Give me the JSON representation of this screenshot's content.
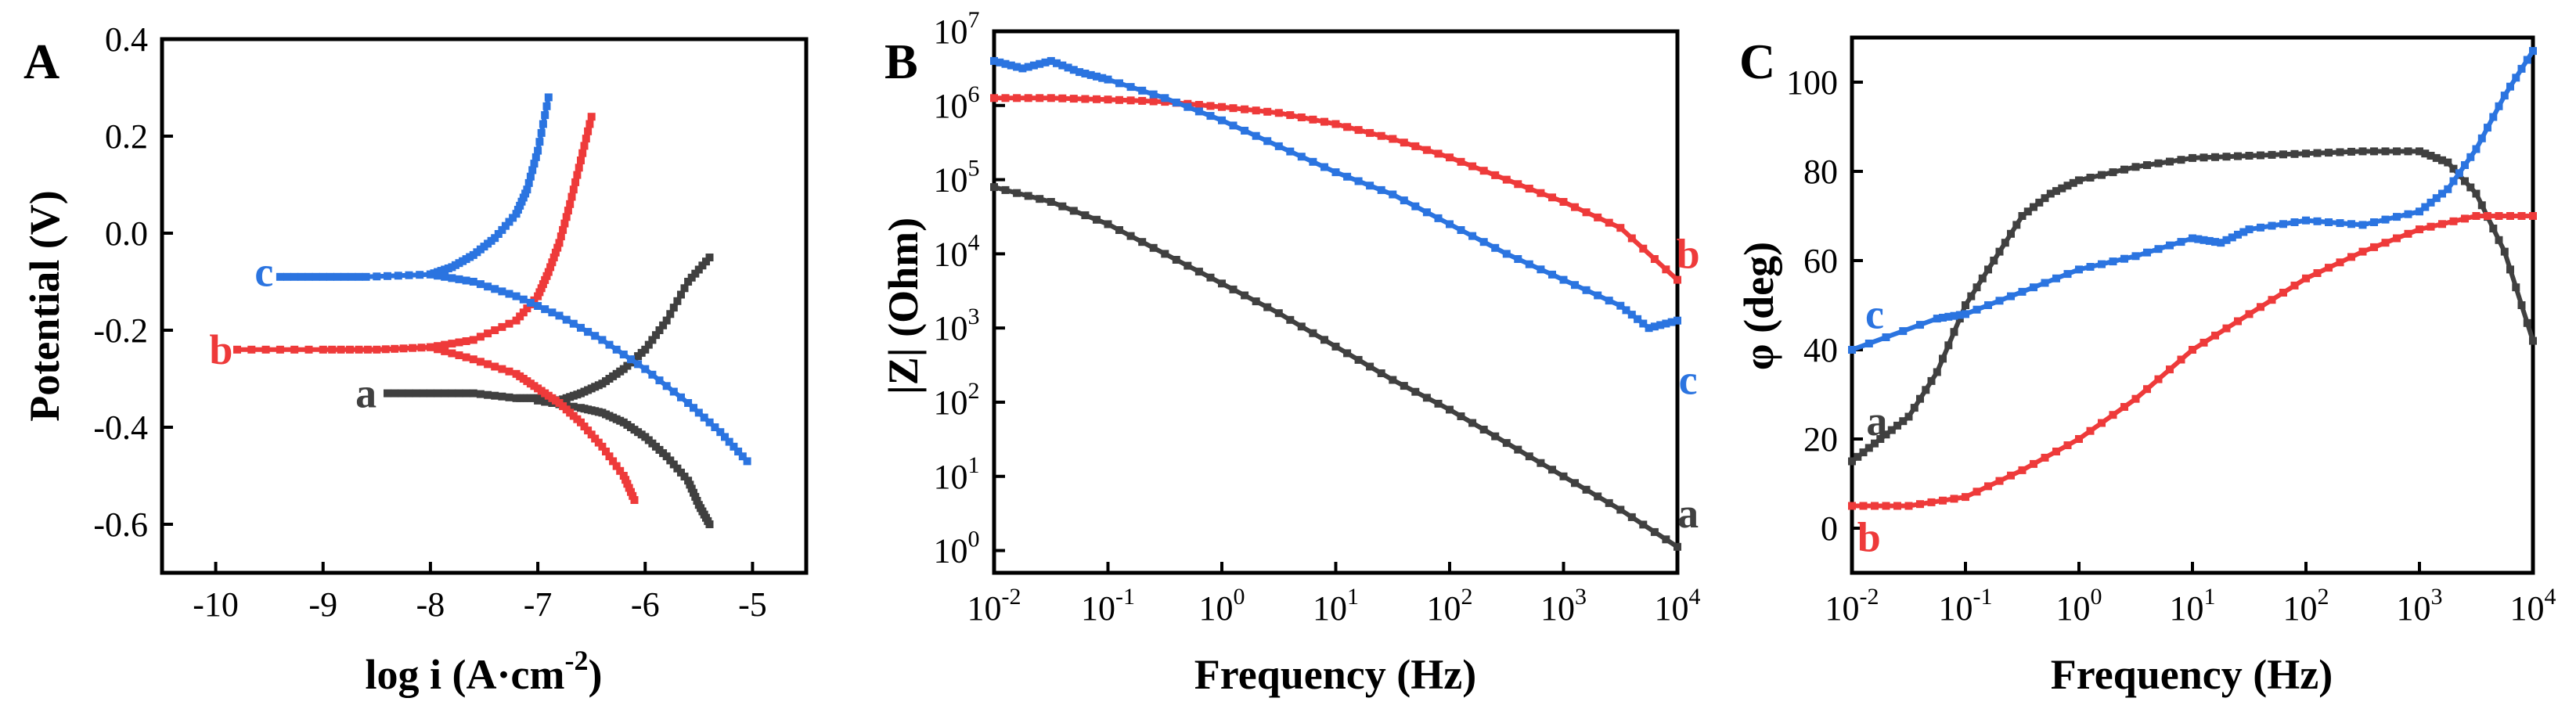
{
  "chart_data": [
    {
      "type": "line",
      "panel_label": "A",
      "title": "",
      "xlabel_main": "log i (A·cm",
      "xlabel_sup": "-2",
      "xlabel_end": ")",
      "ylabel": "Potential (V)",
      "xlim": [
        -10.5,
        -4.5
      ],
      "ylim": [
        -0.7,
        0.4
      ],
      "x_ticks": [
        -10,
        -9,
        -8,
        -7,
        -6,
        -5
      ],
      "x_tick_labels": [
        "-10",
        "-9",
        "-8",
        "-7",
        "-6",
        "-5"
      ],
      "y_ticks": [
        -0.6,
        -0.4,
        -0.2,
        0.0,
        0.2,
        0.4
      ],
      "y_tick_labels": [
        "-0.6",
        "-0.4",
        "-0.2",
        "0.0",
        "0.2",
        "0.4"
      ],
      "series": [
        {
          "name": "a",
          "color": "#404040",
          "label_at": [
            -8.6,
            -0.33
          ],
          "x": [
            -8.4,
            -8.0,
            -7.6,
            -7.2,
            -7.0,
            -6.8,
            -6.6,
            -6.4,
            -6.2,
            -6.0,
            -5.8,
            -5.6,
            -5.4
          ],
          "y": [
            -0.33,
            -0.33,
            -0.33,
            -0.34,
            -0.34,
            -0.345,
            -0.33,
            -0.31,
            -0.28,
            -0.24,
            -0.18,
            -0.1,
            -0.05
          ],
          "x2": [
            -7.0,
            -6.6,
            -6.4,
            -6.2,
            -6.0,
            -5.8,
            -5.6,
            -5.5,
            -5.4
          ],
          "y2": [
            -0.345,
            -0.36,
            -0.37,
            -0.39,
            -0.42,
            -0.46,
            -0.51,
            -0.56,
            -0.6
          ]
        },
        {
          "name": "b",
          "color": "#ee3a3a",
          "label_at": [
            -9.95,
            -0.24
          ],
          "x": [
            -9.8,
            -9.0,
            -8.5,
            -8.0,
            -7.6,
            -7.2,
            -7.0,
            -6.9,
            -6.8,
            -6.7,
            -6.6,
            -6.5
          ],
          "y": [
            -0.24,
            -0.24,
            -0.24,
            -0.235,
            -0.22,
            -0.18,
            -0.13,
            -0.08,
            -0.02,
            0.06,
            0.15,
            0.24
          ],
          "x2": [
            -8.0,
            -7.6,
            -7.2,
            -7.0,
            -6.8,
            -6.6,
            -6.4,
            -6.2,
            -6.1
          ],
          "y2": [
            -0.235,
            -0.26,
            -0.29,
            -0.32,
            -0.35,
            -0.39,
            -0.44,
            -0.5,
            -0.55
          ]
        },
        {
          "name": "c",
          "color": "#2b74e0",
          "label_at": [
            -9.55,
            -0.08
          ],
          "x": [
            -9.4,
            -9.0,
            -8.6,
            -8.0,
            -7.8,
            -7.6,
            -7.4,
            -7.2,
            -7.1,
            -7.0,
            -6.9
          ],
          "y": [
            -0.09,
            -0.09,
            -0.09,
            -0.085,
            -0.07,
            -0.045,
            -0.01,
            0.04,
            0.09,
            0.17,
            0.28
          ],
          "x2": [
            -8.0,
            -7.6,
            -7.2,
            -6.8,
            -6.4,
            -6.0,
            -5.6,
            -5.3,
            -5.05
          ],
          "y2": [
            -0.085,
            -0.1,
            -0.13,
            -0.17,
            -0.22,
            -0.28,
            -0.35,
            -0.41,
            -0.47
          ]
        }
      ]
    },
    {
      "type": "line",
      "panel_label": "B",
      "title": "",
      "xlabel": "Frequency (Hz)",
      "ylabel": "|Z| (Ohm)",
      "x_scale": "log",
      "y_scale": "log",
      "xlim_exp": [
        -2,
        4
      ],
      "ylim_exp": [
        -0.3,
        7
      ],
      "x_tick_exps": [
        "-2",
        "-1",
        "0",
        "1",
        "2",
        "3",
        "4"
      ],
      "y_tick_exps": [
        "0",
        "1",
        "2",
        "3",
        "4",
        "5",
        "6",
        "7"
      ],
      "tick_base": "10",
      "series": [
        {
          "name": "a",
          "color": "#404040",
          "label_at": [
            3.75,
            0.5
          ],
          "log_x": [
            -2,
            -1.5,
            -1,
            -0.5,
            0,
            0.5,
            1,
            1.5,
            2,
            2.5,
            3,
            3.5,
            4
          ],
          "log_y": [
            4.9,
            4.7,
            4.4,
            4.0,
            3.6,
            3.2,
            2.75,
            2.3,
            1.9,
            1.45,
            1.0,
            0.55,
            0.05
          ]
        },
        {
          "name": "b",
          "color": "#ee3a3a",
          "label_at": [
            3.75,
            4.0
          ],
          "log_x": [
            -2,
            -1.5,
            -1,
            -0.5,
            0,
            0.5,
            1,
            1.5,
            2,
            2.5,
            3,
            3.5,
            4
          ],
          "log_y": [
            6.1,
            6.1,
            6.08,
            6.05,
            5.98,
            5.9,
            5.75,
            5.55,
            5.3,
            5.0,
            4.7,
            4.35,
            3.65
          ]
        },
        {
          "name": "c",
          "color": "#2b74e0",
          "label_at": [
            3.75,
            2.3
          ],
          "log_x": [
            -2,
            -1.75,
            -1.5,
            -1.25,
            -1,
            -0.5,
            0,
            0.5,
            1,
            1.5,
            2,
            2.5,
            3,
            3.5,
            3.75,
            4
          ],
          "log_y": [
            6.6,
            6.5,
            6.6,
            6.45,
            6.35,
            6.1,
            5.8,
            5.45,
            5.1,
            4.8,
            4.4,
            4.0,
            3.65,
            3.3,
            3.0,
            3.1
          ]
        }
      ]
    },
    {
      "type": "line",
      "panel_label": "C",
      "title": "",
      "xlabel": "Frequency (Hz)",
      "ylabel": "φ (deg)",
      "x_scale": "log",
      "xlim_exp": [
        -2,
        4
      ],
      "ylim": [
        -10,
        110
      ],
      "x_tick_exps": [
        "-2",
        "-1",
        "0",
        "1",
        "2",
        "3",
        "4"
      ],
      "tick_base": "10",
      "y_ticks": [
        0,
        20,
        40,
        60,
        80,
        100
      ],
      "y_tick_labels": [
        "0",
        "20",
        "40",
        "60",
        "80",
        "100"
      ],
      "series": [
        {
          "name": "a",
          "color": "#404040",
          "label_at": [
            -1.78,
            24
          ],
          "log_x": [
            -2,
            -1.75,
            -1.5,
            -1.25,
            -1,
            -0.75,
            -0.5,
            -0.25,
            0,
            0.5,
            1,
            1.5,
            2,
            2.5,
            3,
            3.25,
            3.5,
            3.75,
            4
          ],
          "y": [
            15,
            20,
            25,
            35,
            50,
            60,
            70,
            75,
            78,
            81,
            83,
            83.5,
            84,
            84.5,
            84.5,
            82,
            75,
            62,
            42
          ]
        },
        {
          "name": "b",
          "color": "#ee3a3a",
          "label_at": [
            -1.85,
            -2
          ],
          "log_x": [
            -2,
            -1.5,
            -1,
            -0.5,
            0,
            0.5,
            1,
            1.5,
            2,
            2.5,
            3,
            3.5,
            4
          ],
          "y": [
            5,
            5,
            7,
            13,
            20,
            29,
            40,
            48,
            56,
            62,
            67,
            70,
            70
          ]
        },
        {
          "name": "c",
          "color": "#2b74e0",
          "label_at": [
            -1.8,
            48
          ],
          "log_x": [
            -2,
            -1.25,
            -1,
            -0.5,
            0,
            0.5,
            1,
            1.25,
            1.5,
            2,
            2.5,
            3,
            3.25,
            3.5,
            3.75,
            4
          ],
          "y": [
            40,
            47,
            48,
            53,
            58,
            61,
            65,
            64,
            67,
            69,
            68,
            71,
            76,
            85,
            97,
            107
          ]
        }
      ]
    }
  ]
}
